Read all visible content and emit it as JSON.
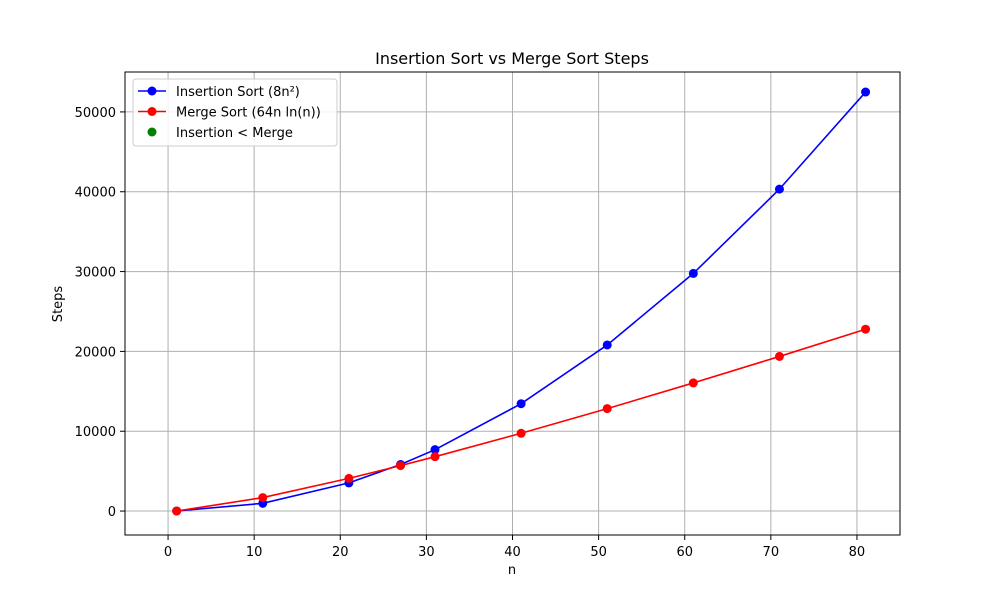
{
  "chart_data": {
    "type": "line",
    "title": "Insertion Sort vs Merge Sort Steps",
    "xlabel": "n",
    "ylabel": "Steps",
    "xlim": [
      -5,
      85
    ],
    "ylim": [
      -3000,
      55000
    ],
    "xticks": [
      0,
      10,
      20,
      30,
      40,
      50,
      60,
      70,
      80
    ],
    "yticks": [
      0,
      10000,
      20000,
      30000,
      40000,
      50000
    ],
    "grid": true,
    "legend_position": "top-left",
    "series": [
      {
        "name": "Insertion Sort (8n²)",
        "color": "#0000ff",
        "marker": "circle",
        "x": [
          1,
          11,
          21,
          27,
          31,
          41,
          51,
          61,
          71,
          81
        ],
        "y": [
          8,
          968,
          3528,
          5832,
          7688,
          13448,
          20808,
          29768,
          40328,
          52488
        ]
      },
      {
        "name": "Merge Sort (64n ln(n))",
        "color": "#ff0000",
        "marker": "circle",
        "x": [
          1,
          11,
          21,
          27,
          31,
          41,
          51,
          61,
          71,
          81
        ],
        "y": [
          0,
          1688,
          4092,
          5695,
          6813,
          9744,
          12833,
          16050,
          19370,
          22779
        ]
      },
      {
        "name": "Insertion < Merge",
        "color": "#008000",
        "marker": "circle",
        "type": "scatter",
        "x": [],
        "y": []
      }
    ]
  }
}
